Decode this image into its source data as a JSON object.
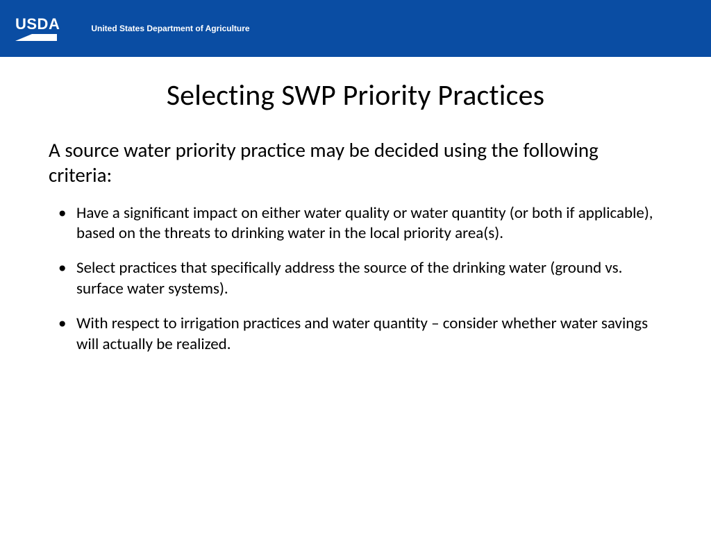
{
  "header": {
    "logo_text": "USDA",
    "department_name": "United States Department of Agriculture",
    "background_color": "#0a4da3",
    "text_color": "#ffffff"
  },
  "slide": {
    "title": "Selecting SWP Priority Practices",
    "intro": "A source water priority practice may be decided using the following criteria:",
    "bullets": [
      "Have a significant impact on either water quality or water quantity (or both if applicable), based on the threats to drinking water in the local priority area(s).",
      "Select practices that specifically address the source of the drinking water (ground vs. surface water systems).",
      "With respect to irrigation practices and water quantity – consider whether water savings will actually be realized."
    ],
    "title_fontsize": 42,
    "intro_fontsize": 29,
    "bullet_fontsize": 23,
    "text_color": "#000000",
    "background_color": "#ffffff"
  }
}
